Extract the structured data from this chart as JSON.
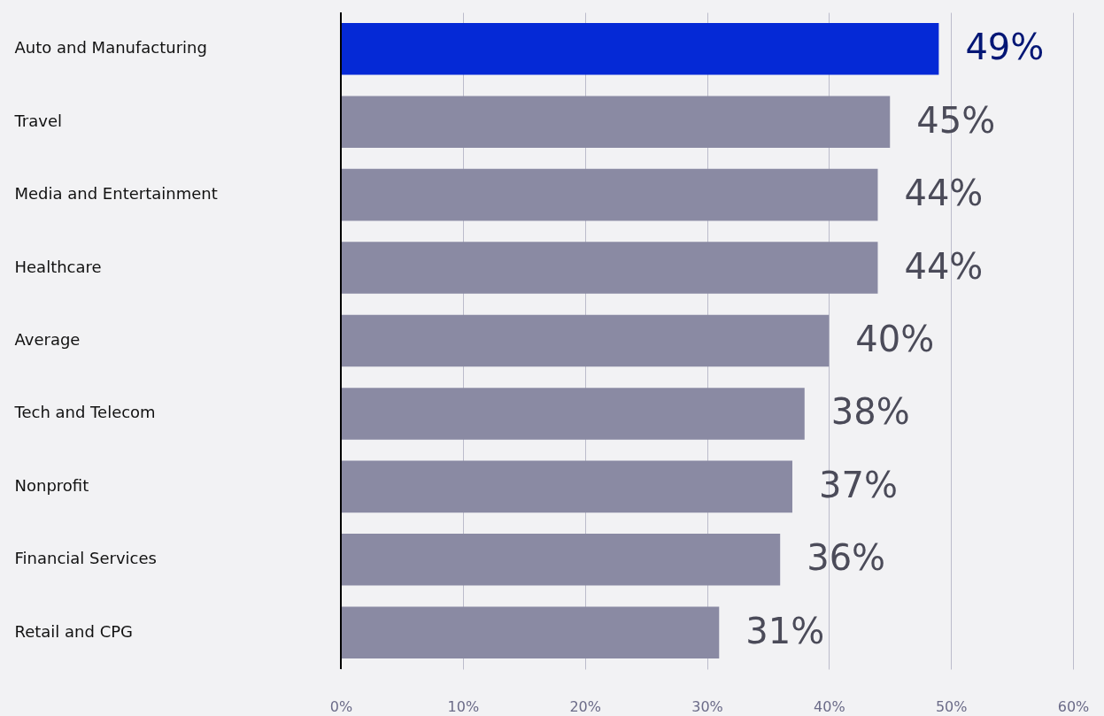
{
  "chart_data": {
    "type": "bar",
    "orientation": "horizontal",
    "categories": [
      "Auto and Manufacturing",
      "Travel",
      "Media and Entertainment",
      "Healthcare",
      "Average",
      "Tech and Telecom",
      "Nonprofit",
      "Financial Services",
      "Retail and CPG"
    ],
    "values": [
      49,
      45,
      44,
      44,
      40,
      38,
      37,
      36,
      31
    ],
    "colors": [
      "#0529d6",
      "#8a8aa3",
      "#8a8aa3",
      "#8a8aa3",
      "#8a8aa3",
      "#8a8aa3",
      "#8a8aa3",
      "#8a8aa3",
      "#8a8aa3"
    ],
    "xlim": [
      0,
      60
    ],
    "xticks": [
      {
        "value": 0,
        "label": "0%"
      },
      {
        "value": 10,
        "label": "10%"
      },
      {
        "value": 20,
        "label": "20%"
      },
      {
        "value": 30,
        "label": "30%"
      },
      {
        "value": 40,
        "label": "40%"
      },
      {
        "value": 50,
        "label": "50%"
      },
      {
        "value": 60,
        "label": "60%"
      }
    ],
    "value_labels": [
      "49%",
      "45%",
      "44%",
      "44%",
      "40%",
      "38%",
      "37%",
      "36%",
      "31%"
    ],
    "grid": "x"
  }
}
